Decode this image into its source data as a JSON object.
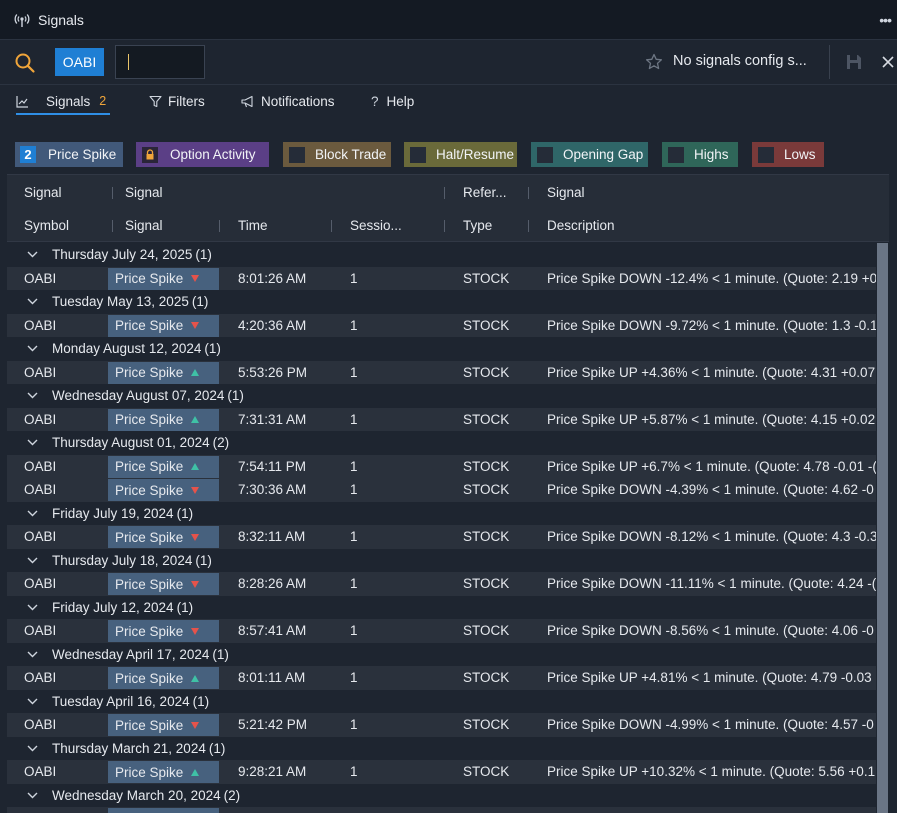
{
  "window": {
    "title": "Signals",
    "more": "•••"
  },
  "toolbar": {
    "symbol": "OABI",
    "input_value": "",
    "input_placeholder": "",
    "config_text": "No signals config s..."
  },
  "tabs": [
    {
      "label": "Signals",
      "count": "2"
    },
    {
      "label": "Filters"
    },
    {
      "label": "Notifications"
    },
    {
      "label": "Help"
    }
  ],
  "chips": [
    {
      "label": "Price Spike",
      "count": "2",
      "bg": "#41597a"
    },
    {
      "label": "Option Activity",
      "bg": "#5b3f86"
    },
    {
      "label": "Block Trade",
      "bg": "#6b5a3e"
    },
    {
      "label": "Halt/Resume",
      "bg": "#6a6a3a"
    },
    {
      "label": "Opening Gap",
      "bg": "#2f6668"
    },
    {
      "label": "Highs",
      "bg": "#2f6659"
    },
    {
      "label": "Lows",
      "bg": "#7a3a3a"
    }
  ],
  "headers": {
    "row1": [
      "Signal",
      "Signal",
      "Refer...",
      "Signal"
    ],
    "row2": [
      "Symbol",
      "Signal",
      "Time",
      "Sessio...",
      "Type",
      "Description"
    ]
  },
  "groups": [
    {
      "date": "Thursday July 24, 2025",
      "count": "(1)",
      "rows": [
        {
          "symbol": "OABI",
          "signal": "Price Spike",
          "dir": "down",
          "time": "8:01:26 AM",
          "session": "1",
          "type": "STOCK",
          "desc": "Price Spike DOWN -12.4% < 1 minute. (Quote: 2.19 +0"
        }
      ]
    },
    {
      "date": "Tuesday May 13, 2025",
      "count": "(1)",
      "rows": [
        {
          "symbol": "OABI",
          "signal": "Price Spike",
          "dir": "down",
          "time": "4:20:36 AM",
          "session": "1",
          "type": "STOCK",
          "desc": "Price Spike DOWN -9.72% < 1 minute. (Quote: 1.3 -0.1"
        }
      ]
    },
    {
      "date": "Monday August 12, 2024",
      "count": "(1)",
      "rows": [
        {
          "symbol": "OABI",
          "signal": "Price Spike",
          "dir": "up",
          "time": "5:53:26 PM",
          "session": "1",
          "type": "STOCK",
          "desc": "Price Spike UP +4.36% < 1 minute. (Quote: 4.31 +0.07"
        }
      ]
    },
    {
      "date": "Wednesday August 07, 2024",
      "count": "(1)",
      "rows": [
        {
          "symbol": "OABI",
          "signal": "Price Spike",
          "dir": "up",
          "time": "7:31:31 AM",
          "session": "1",
          "type": "STOCK",
          "desc": "Price Spike UP +5.87% < 1 minute. (Quote: 4.15 +0.02"
        }
      ]
    },
    {
      "date": "Thursday August 01, 2024",
      "count": "(2)",
      "rows": [
        {
          "symbol": "OABI",
          "signal": "Price Spike",
          "dir": "up",
          "time": "7:54:11 PM",
          "session": "1",
          "type": "STOCK",
          "desc": "Price Spike UP +6.7% < 1 minute. (Quote: 4.78 -0.01 -("
        },
        {
          "symbol": "OABI",
          "signal": "Price Spike",
          "dir": "down",
          "time": "7:30:36 AM",
          "session": "1",
          "type": "STOCK",
          "desc": "Price Spike DOWN -4.39% < 1 minute. (Quote: 4.62 -0"
        }
      ]
    },
    {
      "date": "Friday July 19, 2024",
      "count": "(1)",
      "rows": [
        {
          "symbol": "OABI",
          "signal": "Price Spike",
          "dir": "down",
          "time": "8:32:11 AM",
          "session": "1",
          "type": "STOCK",
          "desc": "Price Spike DOWN -8.12% < 1 minute. (Quote: 4.3 -0.3"
        }
      ]
    },
    {
      "date": "Thursday July 18, 2024",
      "count": "(1)",
      "rows": [
        {
          "symbol": "OABI",
          "signal": "Price Spike",
          "dir": "down",
          "time": "8:28:26 AM",
          "session": "1",
          "type": "STOCK",
          "desc": "Price Spike DOWN -11.11% < 1 minute. (Quote: 4.24 -("
        }
      ]
    },
    {
      "date": "Friday July 12, 2024",
      "count": "(1)",
      "rows": [
        {
          "symbol": "OABI",
          "signal": "Price Spike",
          "dir": "down",
          "time": "8:57:41 AM",
          "session": "1",
          "type": "STOCK",
          "desc": "Price Spike DOWN -8.56% < 1 minute. (Quote: 4.06 -0"
        }
      ]
    },
    {
      "date": "Wednesday April 17, 2024",
      "count": "(1)",
      "rows": [
        {
          "symbol": "OABI",
          "signal": "Price Spike",
          "dir": "up",
          "time": "8:01:11 AM",
          "session": "1",
          "type": "STOCK",
          "desc": "Price Spike UP +4.81% < 1 minute. (Quote: 4.79 -0.03"
        }
      ]
    },
    {
      "date": "Tuesday April 16, 2024",
      "count": "(1)",
      "rows": [
        {
          "symbol": "OABI",
          "signal": "Price Spike",
          "dir": "down",
          "time": "5:21:42 PM",
          "session": "1",
          "type": "STOCK",
          "desc": "Price Spike DOWN -4.99% < 1 minute. (Quote: 4.57 -0"
        }
      ]
    },
    {
      "date": "Thursday March 21, 2024",
      "count": "(1)",
      "rows": [
        {
          "symbol": "OABI",
          "signal": "Price Spike",
          "dir": "up",
          "time": "9:28:21 AM",
          "session": "1",
          "type": "STOCK",
          "desc": "Price Spike UP +10.32% < 1 minute. (Quote: 5.56 +0.1"
        }
      ]
    },
    {
      "date": "Wednesday March 20, 2024",
      "count": "(2)",
      "rows": [
        {
          "symbol": "",
          "signal": "",
          "dir": "",
          "time": "",
          "session": "",
          "type": "",
          "desc": ""
        }
      ]
    }
  ],
  "colors": {
    "accent": "#1f7fd4",
    "up": "#3fc1a6",
    "down": "#e5534b",
    "signal_cell": "#47617e"
  }
}
